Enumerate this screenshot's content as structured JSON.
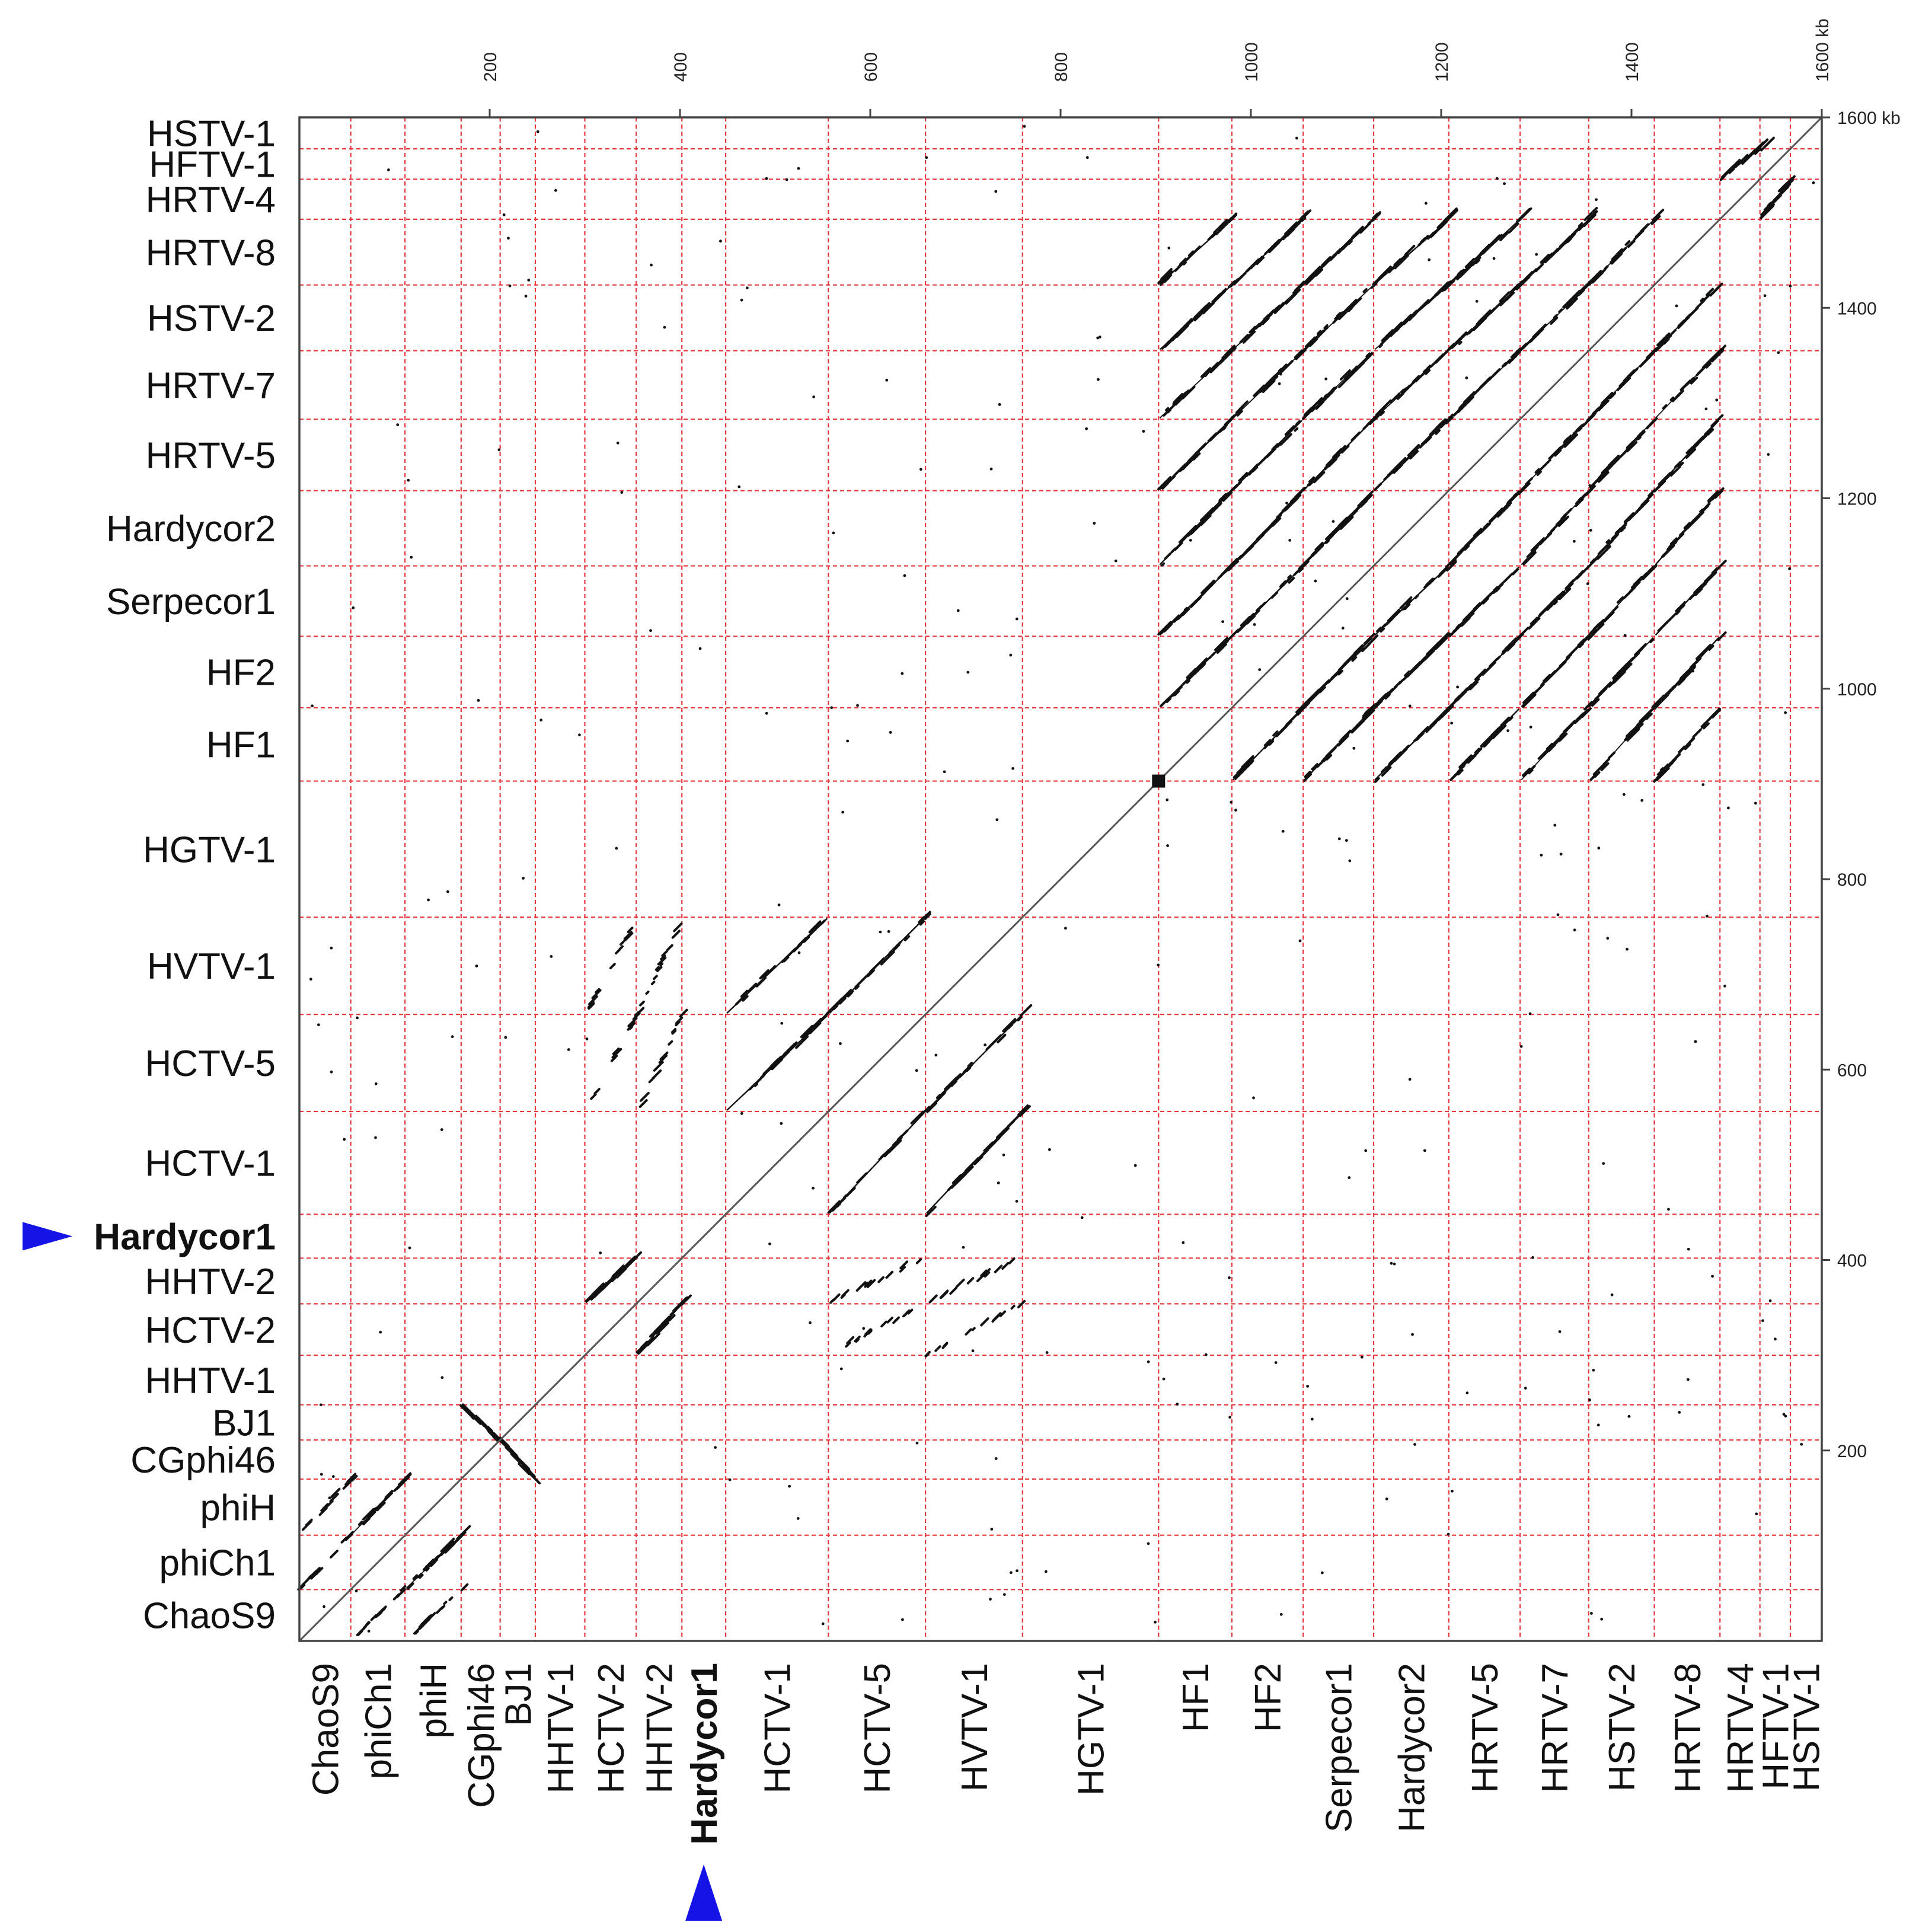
{
  "chart_data": {
    "type": "scatter",
    "title": "",
    "xlabel": "",
    "ylabel": "",
    "unit": "kb",
    "xlim": [
      0,
      1600
    ],
    "ylim": [
      0,
      1600
    ],
    "x_ticks": [
      "200",
      "400",
      "600",
      "800",
      "1000",
      "1200",
      "1400",
      "1600 kb"
    ],
    "y_ticks": [
      "200",
      "400",
      "600",
      "800",
      "1000",
      "1200",
      "1400",
      "1600 kb"
    ],
    "highlighted_genome": "Hardycor1",
    "colors": {
      "grid": "#e8383d",
      "dots": "#111111",
      "frame": "#444444",
      "marker": "#1414e6"
    },
    "genomes": [
      {
        "name": "ChaoS9",
        "start": 0,
        "end": 54
      },
      {
        "name": "phiCh1",
        "start": 54,
        "end": 111
      },
      {
        "name": "phiH",
        "start": 111,
        "end": 170
      },
      {
        "name": "CGphi46",
        "start": 170,
        "end": 211
      },
      {
        "name": "BJ1",
        "start": 211,
        "end": 248
      },
      {
        "name": "HHTV-1",
        "start": 248,
        "end": 300
      },
      {
        "name": "HCTV-2",
        "start": 300,
        "end": 354
      },
      {
        "name": "HHTV-2",
        "start": 354,
        "end": 402
      },
      {
        "name": "Hardycor1",
        "start": 402,
        "end": 448
      },
      {
        "name": "HCTV-1",
        "start": 448,
        "end": 556
      },
      {
        "name": "HCTV-5",
        "start": 556,
        "end": 658
      },
      {
        "name": "HVTV-1",
        "start": 658,
        "end": 760
      },
      {
        "name": "HGTV-1",
        "start": 760,
        "end": 903
      },
      {
        "name": "HF1",
        "start": 903,
        "end": 980
      },
      {
        "name": "HF2",
        "start": 980,
        "end": 1055
      },
      {
        "name": "Serpecor1",
        "start": 1055,
        "end": 1129
      },
      {
        "name": "Hardycor2",
        "start": 1129,
        "end": 1208
      },
      {
        "name": "HRTV-5",
        "start": 1208,
        "end": 1283
      },
      {
        "name": "HRTV-7",
        "start": 1283,
        "end": 1355
      },
      {
        "name": "HSTV-2",
        "start": 1355,
        "end": 1424
      },
      {
        "name": "HRTV-8",
        "start": 1424,
        "end": 1493
      },
      {
        "name": "HRTV-4",
        "start": 1493,
        "end": 1535
      },
      {
        "name": "HFTV-1",
        "start": 1535,
        "end": 1567
      },
      {
        "name": "HSTV-1",
        "start": 1567,
        "end": 1600
      }
    ],
    "similar_blocks": [
      {
        "x": "ChaoS9",
        "y": "phiCh1",
        "strength": 1,
        "dir": 1
      },
      {
        "x": "ChaoS9",
        "y": "phiH",
        "strength": 1,
        "dir": 1
      },
      {
        "x": "phiCh1",
        "y": "phiH",
        "strength": 2,
        "dir": 1
      },
      {
        "x": "CGphi46",
        "y": "BJ1",
        "strength": 2,
        "dir": -1
      },
      {
        "x": "HCTV-2",
        "y": "HHTV-2",
        "strength": 3,
        "dir": 1
      },
      {
        "x": "HCTV-2",
        "y": "HCTV-5",
        "strength": 1,
        "dir": 1
      },
      {
        "x": "HCTV-2",
        "y": "HVTV-1",
        "strength": 1,
        "dir": 1
      },
      {
        "x": "HHTV-2",
        "y": "HCTV-5",
        "strength": 1,
        "dir": 1
      },
      {
        "x": "HHTV-2",
        "y": "HVTV-1",
        "strength": 1,
        "dir": 1
      },
      {
        "x": "HCTV-1",
        "y": "HCTV-5",
        "strength": 3,
        "dir": 1
      },
      {
        "x": "HCTV-1",
        "y": "HVTV-1",
        "strength": 3,
        "dir": 1
      },
      {
        "x": "HCTV-5",
        "y": "HVTV-1",
        "strength": 3,
        "dir": 1
      },
      {
        "x": "HF1",
        "y": "HF2",
        "strength": 3,
        "dir": 1
      },
      {
        "x": "HF1",
        "y": "Serpecor1",
        "strength": 3,
        "dir": 1
      },
      {
        "x": "HF1",
        "y": "Hardycor2",
        "strength": 3,
        "dir": 1
      },
      {
        "x": "HF1",
        "y": "HRTV-5",
        "strength": 3,
        "dir": 1
      },
      {
        "x": "HF1",
        "y": "HRTV-7",
        "strength": 2,
        "dir": 1
      },
      {
        "x": "HF1",
        "y": "HSTV-2",
        "strength": 2,
        "dir": 1
      },
      {
        "x": "HF1",
        "y": "HRTV-8",
        "strength": 3,
        "dir": 1
      },
      {
        "x": "HF2",
        "y": "Serpecor1",
        "strength": 3,
        "dir": 1
      },
      {
        "x": "HF2",
        "y": "Hardycor2",
        "strength": 3,
        "dir": 1
      },
      {
        "x": "HF2",
        "y": "HRTV-5",
        "strength": 3,
        "dir": 1
      },
      {
        "x": "HF2",
        "y": "HRTV-7",
        "strength": 2,
        "dir": 1
      },
      {
        "x": "HF2",
        "y": "HSTV-2",
        "strength": 2,
        "dir": 1
      },
      {
        "x": "HF2",
        "y": "HRTV-8",
        "strength": 3,
        "dir": 1
      },
      {
        "x": "Serpecor1",
        "y": "Hardycor2",
        "strength": 3,
        "dir": 1
      },
      {
        "x": "Serpecor1",
        "y": "HRTV-5",
        "strength": 3,
        "dir": 1
      },
      {
        "x": "Serpecor1",
        "y": "HRTV-7",
        "strength": 2,
        "dir": 1
      },
      {
        "x": "Serpecor1",
        "y": "HSTV-2",
        "strength": 2,
        "dir": 1
      },
      {
        "x": "Serpecor1",
        "y": "HRTV-8",
        "strength": 3,
        "dir": 1
      },
      {
        "x": "Hardycor2",
        "y": "HRTV-5",
        "strength": 3,
        "dir": 1
      },
      {
        "x": "Hardycor2",
        "y": "HRTV-7",
        "strength": 2,
        "dir": 1
      },
      {
        "x": "Hardycor2",
        "y": "HSTV-2",
        "strength": 2,
        "dir": 1
      },
      {
        "x": "Hardycor2",
        "y": "HRTV-8",
        "strength": 3,
        "dir": 1
      },
      {
        "x": "HRTV-5",
        "y": "HRTV-7",
        "strength": 2,
        "dir": 1
      },
      {
        "x": "HRTV-5",
        "y": "HSTV-2",
        "strength": 2,
        "dir": 1
      },
      {
        "x": "HRTV-5",
        "y": "HRTV-8",
        "strength": 3,
        "dir": 1
      },
      {
        "x": "HRTV-7",
        "y": "HSTV-2",
        "strength": 2,
        "dir": 1
      },
      {
        "x": "HRTV-7",
        "y": "HRTV-8",
        "strength": 2,
        "dir": 1
      },
      {
        "x": "HSTV-2",
        "y": "HRTV-8",
        "strength": 2,
        "dir": 1
      },
      {
        "x": "HRTV-4",
        "y": "HFTV-1",
        "strength": 2,
        "dir": 1
      }
    ]
  }
}
